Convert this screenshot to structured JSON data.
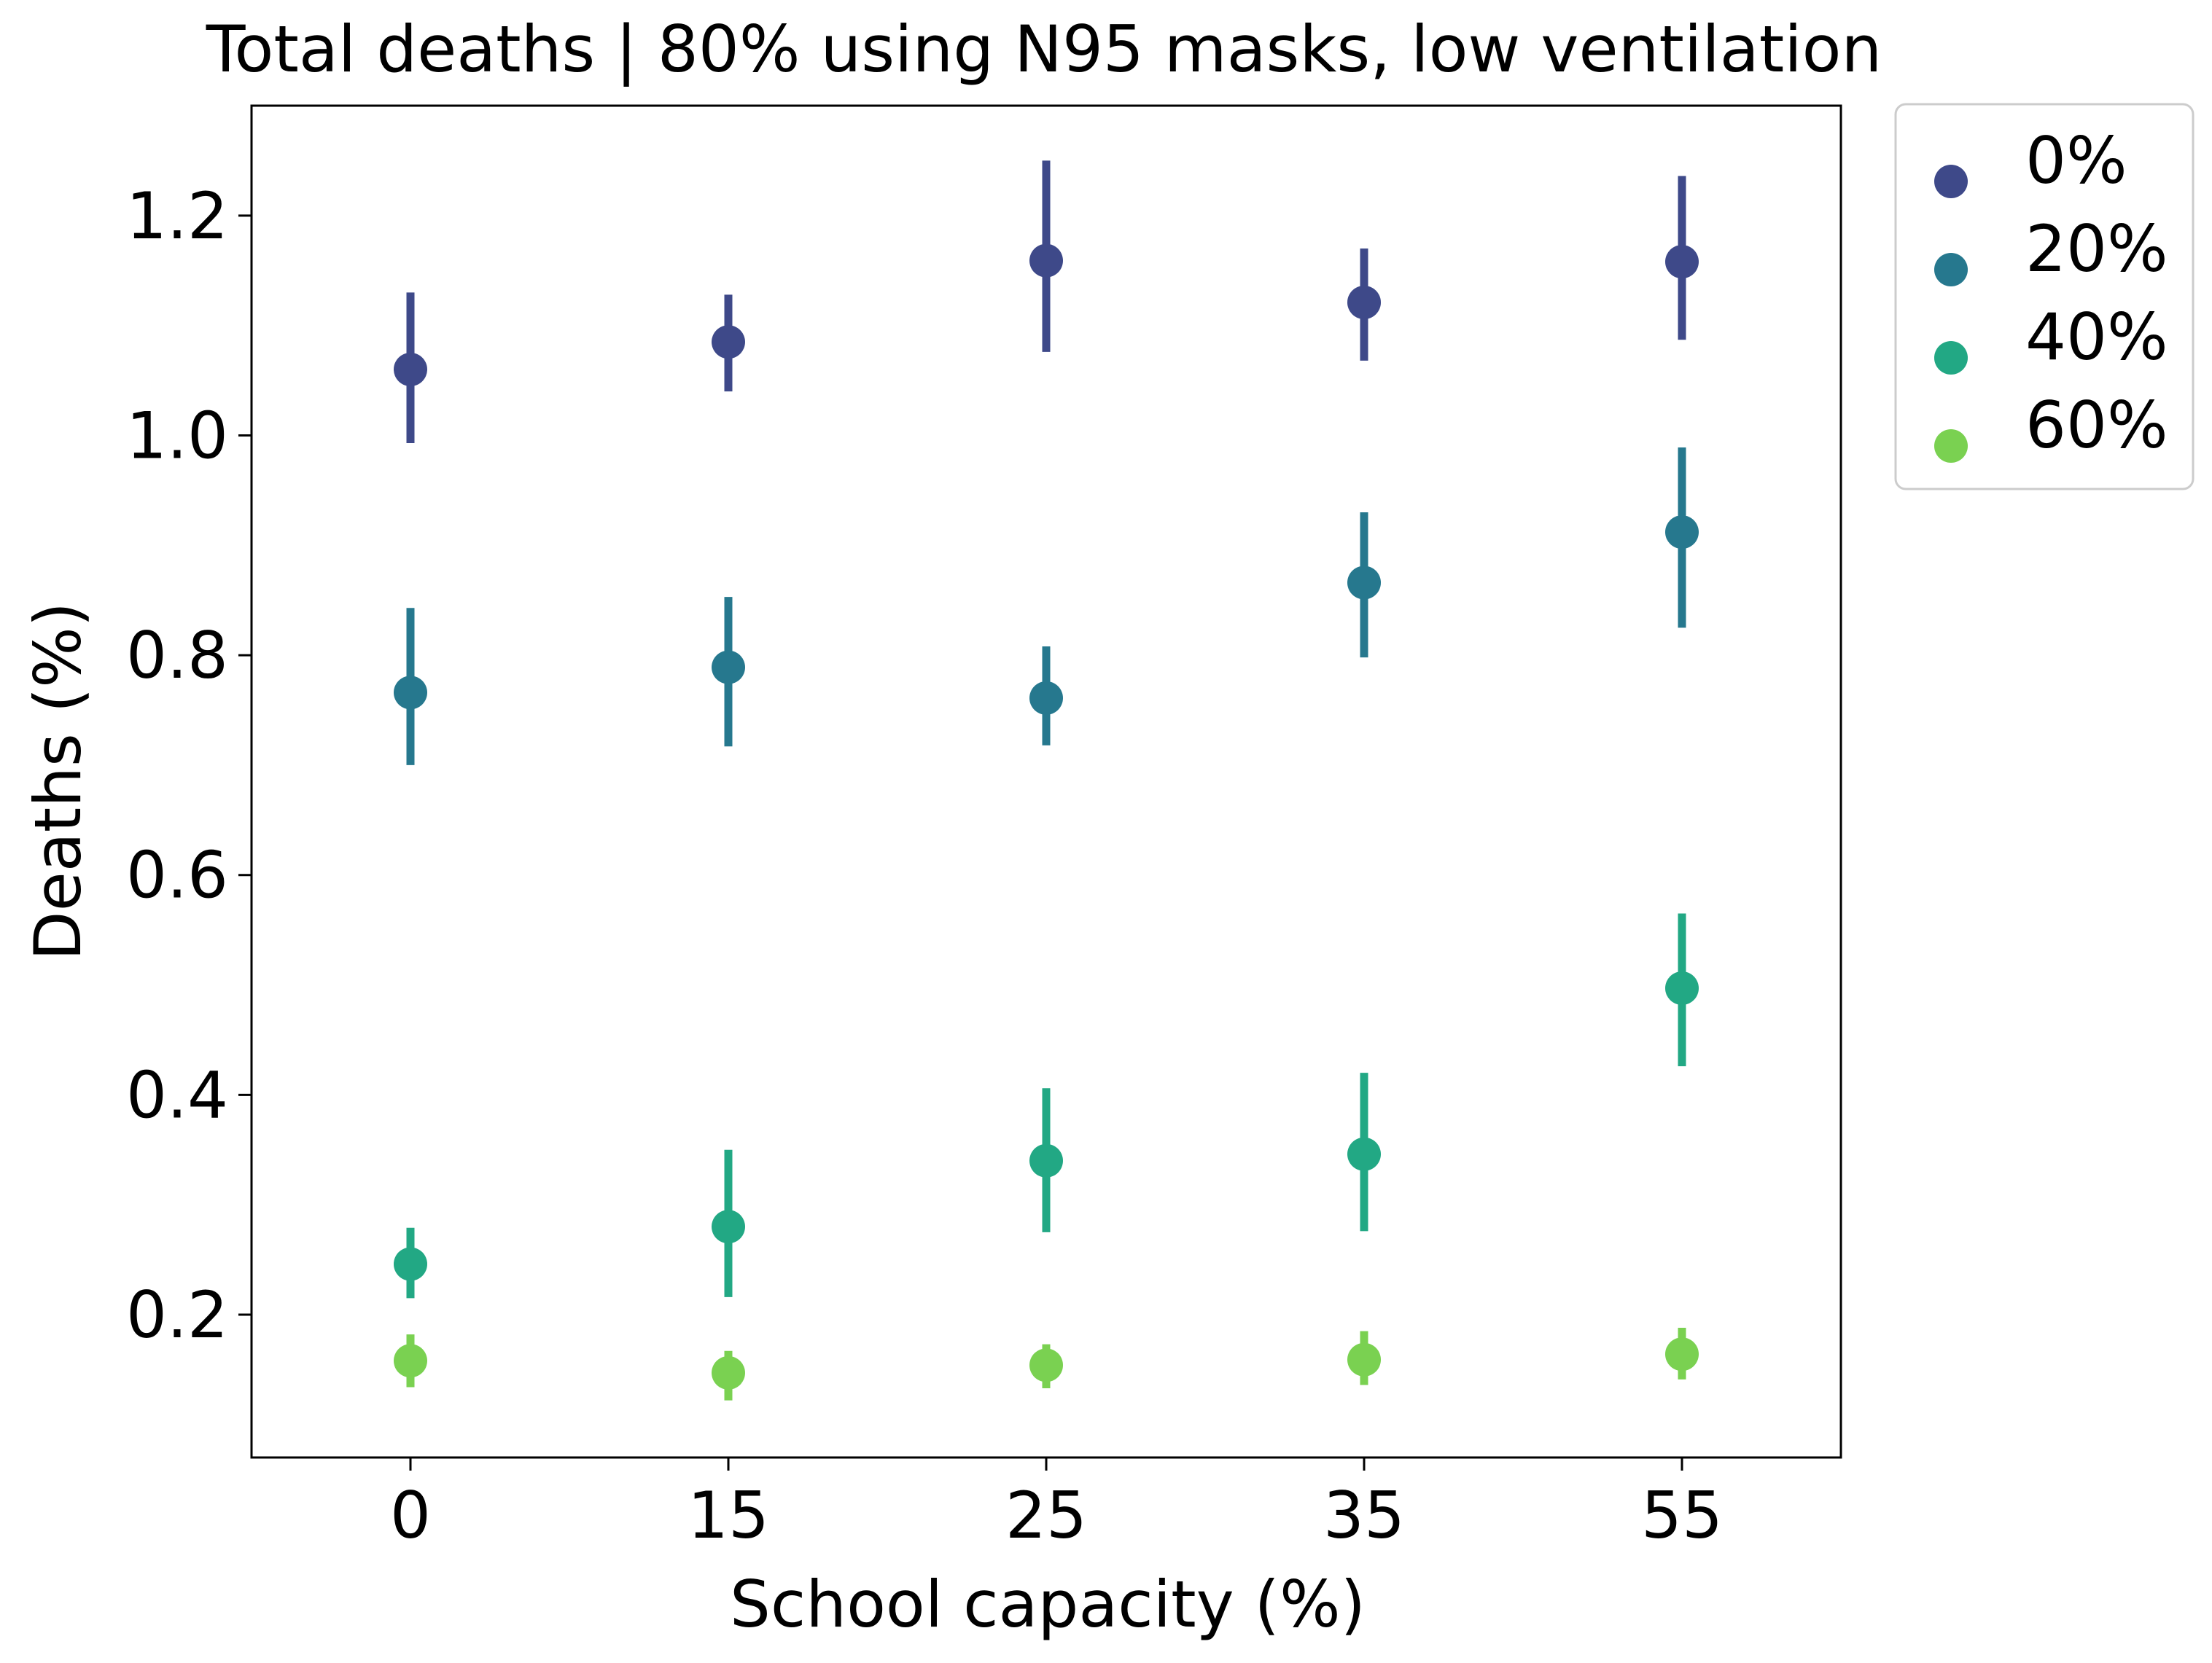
{
  "chart_data": {
    "type": "scatter",
    "title": "Total deaths | 80% using N95 masks, low ventilation",
    "xlabel": "School capacity (%)",
    "ylabel": "Deaths (%)",
    "categories": [
      "0",
      "15",
      "25",
      "35",
      "55"
    ],
    "ylim": [
      0.07,
      1.3
    ],
    "yticks": [
      "0.2",
      "0.4",
      "0.6",
      "0.8",
      "1.0",
      "1.2"
    ],
    "grid": false,
    "legend_position": "outside top-right",
    "series": [
      {
        "name": "0%",
        "color": "#3e4989",
        "values": [
          1.06,
          1.085,
          1.159,
          1.121,
          1.158
        ],
        "err_low": [
          0.993,
          1.04,
          1.076,
          1.068,
          1.087
        ],
        "err_high": [
          1.13,
          1.128,
          1.25,
          1.17,
          1.236
        ]
      },
      {
        "name": "20%",
        "color": "#26788e",
        "values": [
          0.766,
          0.789,
          0.761,
          0.866,
          0.912
        ],
        "err_low": [
          0.7,
          0.717,
          0.718,
          0.798,
          0.825
        ],
        "err_high": [
          0.843,
          0.853,
          0.808,
          0.93,
          0.989
        ]
      },
      {
        "name": "40%",
        "color": "#22a884",
        "values": [
          0.246,
          0.28,
          0.34,
          0.346,
          0.497
        ],
        "err_low": [
          0.215,
          0.216,
          0.275,
          0.276,
          0.426
        ],
        "err_high": [
          0.279,
          0.35,
          0.406,
          0.42,
          0.565
        ]
      },
      {
        "name": "60%",
        "color": "#7ad151",
        "values": [
          0.158,
          0.147,
          0.154,
          0.159,
          0.164
        ],
        "err_low": [
          0.134,
          0.122,
          0.133,
          0.136,
          0.141
        ],
        "err_high": [
          0.182,
          0.167,
          0.173,
          0.185,
          0.188
        ]
      }
    ]
  }
}
